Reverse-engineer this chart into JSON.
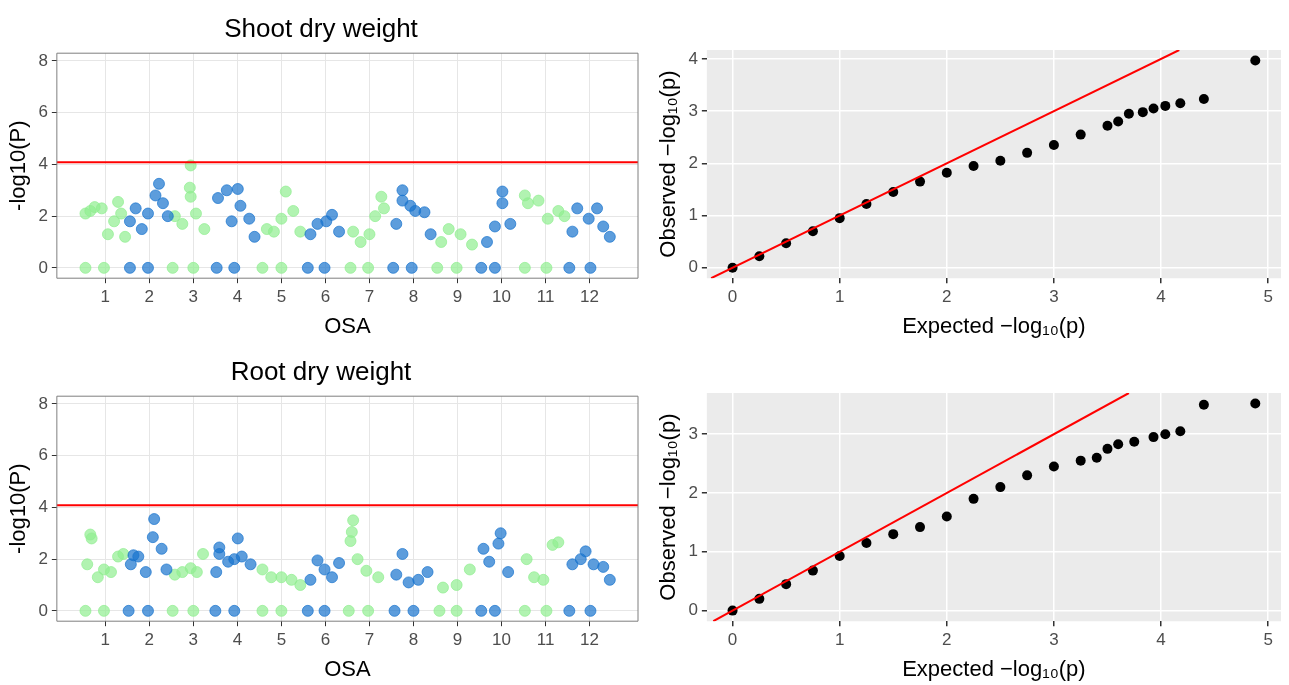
{
  "chart_data": [
    {
      "type": "scatter",
      "title": "Shoot dry weight",
      "xlabel": "OSA",
      "ylabel": "-log10(P)",
      "xlim": [
        -0.1,
        13.1
      ],
      "xticks": [
        1,
        2,
        3,
        4,
        5,
        6,
        7,
        8,
        9,
        10,
        11,
        12
      ],
      "ylim": [
        -0.4,
        8.3
      ],
      "yticks": [
        0,
        2,
        4,
        6,
        8
      ],
      "grid": true,
      "legend": false,
      "marker": "circle",
      "ref_lines": [
        {
          "axis": "y",
          "value": 4.08,
          "color": "#ff0000"
        }
      ],
      "series": [
        {
          "color": "#90ee90",
          "x": [
            0.55,
            0.55,
            0.66,
            0.76,
            0.92,
            1.06,
            1.2,
            1.29,
            1.36,
            1.45,
            0.97,
            2.53,
            2.58,
            2.75,
            2.92,
            2.94,
            2.94,
            3.06,
            3.25,
            3.0,
            4.57,
            4.67,
            4.83,
            5.0,
            5.1,
            5.27,
            5.43,
            5.0,
            6.57,
            6.63,
            6.8,
            7.0,
            7.13,
            7.27,
            7.33,
            6.97,
            8.54,
            8.63,
            8.8,
            9.07,
            9.33,
            8.98,
            10.53,
            10.53,
            10.6,
            10.84,
            11.05,
            11.29,
            11.43,
            11.02
          ],
          "values": [
            0,
            2.1,
            2.2,
            2.35,
            2.3,
            1.3,
            1.8,
            2.55,
            2.1,
            1.2,
            0,
            0,
            2.0,
            1.7,
            3.1,
            3.96,
            2.75,
            2.1,
            1.5,
            0,
            0,
            1.5,
            1.4,
            1.9,
            2.95,
            2.2,
            1.4,
            0,
            0,
            1.4,
            1.0,
            1.3,
            2.0,
            2.75,
            2.3,
            0,
            0,
            1.0,
            1.5,
            1.3,
            0.9,
            0,
            0,
            2.8,
            2.5,
            2.6,
            1.9,
            2.2,
            2.0,
            0
          ]
        },
        {
          "color": "#1874cd",
          "x": [
            1.56,
            1.56,
            1.69,
            1.83,
            1.97,
            2.14,
            2.22,
            2.31,
            2.42,
            1.97,
            3.53,
            3.56,
            3.76,
            3.87,
            4.01,
            4.07,
            4.27,
            4.39,
            3.93,
            5.6,
            5.66,
            5.82,
            6.02,
            6.15,
            6.31,
            5.98,
            7.54,
            7.61,
            7.75,
            7.75,
            7.93,
            8.04,
            8.25,
            8.39,
            7.96,
            9.54,
            9.67,
            9.85,
            10.02,
            10.02,
            10.2,
            9.85,
            11.54,
            11.61,
            11.72,
            11.98,
            12.17,
            12.31,
            12.46,
            12.02
          ],
          "values": [
            0,
            1.8,
            2.3,
            1.5,
            2.1,
            2.8,
            3.25,
            2.5,
            2.0,
            0,
            0,
            2.7,
            3.0,
            1.8,
            3.05,
            2.4,
            1.9,
            1.2,
            0,
            0,
            1.3,
            1.7,
            1.8,
            2.05,
            1.4,
            0,
            0,
            1.7,
            3.0,
            2.6,
            2.4,
            2.2,
            2.15,
            1.3,
            0,
            0,
            1.0,
            1.6,
            2.95,
            2.5,
            1.7,
            0,
            0,
            1.4,
            2.3,
            1.9,
            2.3,
            1.6,
            1.2,
            0
          ]
        }
      ]
    },
    {
      "type": "scatter",
      "xlabel": "Expected −log₁₀(p)",
      "ylabel": "Observed −log₁₀(p)",
      "xlim": [
        -0.24,
        5.12
      ],
      "xticks": [
        0,
        1,
        2,
        3,
        4,
        5
      ],
      "ylim": [
        -0.2,
        4.17
      ],
      "yticks": [
        0,
        1,
        2,
        3,
        4
      ],
      "grid": true,
      "legend": false,
      "marker": "circle",
      "series": [
        {
          "color": "#000000",
          "x": [
            0,
            0.25,
            0.5,
            0.75,
            1,
            1.25,
            1.5,
            1.75,
            2,
            2.25,
            2.5,
            2.75,
            3,
            3.25,
            3.5,
            3.6,
            3.7,
            3.83,
            3.93,
            4.04,
            4.18,
            4.4,
            4.88
          ],
          "values": [
            0,
            0.22,
            0.47,
            0.7,
            0.95,
            1.22,
            1.45,
            1.65,
            1.82,
            1.95,
            2.05,
            2.2,
            2.35,
            2.55,
            2.72,
            2.8,
            2.95,
            2.98,
            3.05,
            3.1,
            3.15,
            3.23,
            3.97
          ]
        },
        {
          "type": "line",
          "marker": "none",
          "color": "#ff0000",
          "x": [
            -0.2,
            4.17
          ],
          "values": [
            -0.2,
            4.17
          ]
        }
      ]
    },
    {
      "type": "scatter",
      "title": "Root dry weight",
      "xlabel": "OSA",
      "ylabel": "-log10(P)",
      "xlim": [
        -0.1,
        13.1
      ],
      "xticks": [
        1,
        2,
        3,
        4,
        5,
        6,
        7,
        8,
        9,
        10,
        11,
        12
      ],
      "ylim": [
        -0.4,
        8.3
      ],
      "yticks": [
        0,
        2,
        4,
        6,
        8
      ],
      "grid": true,
      "legend": false,
      "marker": "circle",
      "ref_lines": [
        {
          "axis": "y",
          "value": 4.08,
          "color": "#ff0000"
        }
      ],
      "series": [
        {
          "color": "#90ee90",
          "x": [
            0.55,
            0.59,
            0.66,
            0.69,
            0.83,
            0.97,
            1.13,
            1.29,
            1.41,
            0.97,
            2.53,
            2.58,
            2.75,
            2.94,
            3.08,
            3.22,
            3.0,
            4.57,
            4.57,
            4.77,
            5.0,
            5.23,
            5.43,
            5.0,
            6.53,
            6.57,
            6.6,
            6.63,
            6.73,
            6.93,
            7.2,
            6.97,
            8.59,
            8.67,
            8.98,
            9.28,
            8.98,
            10.53,
            10.57,
            10.74,
            10.95,
            11.16,
            11.29,
            11.02
          ],
          "values": [
            0,
            1.8,
            2.95,
            2.8,
            1.3,
            1.6,
            1.5,
            2.1,
            2.2,
            0,
            0,
            1.4,
            1.5,
            1.65,
            1.5,
            2.2,
            0,
            0,
            1.6,
            1.3,
            1.3,
            1.2,
            1.0,
            0,
            0,
            2.7,
            3.05,
            3.5,
            2.0,
            1.55,
            1.3,
            0,
            0,
            0.9,
            1.0,
            1.6,
            0,
            0,
            2.0,
            1.3,
            1.2,
            2.55,
            2.65,
            0
          ]
        },
        {
          "color": "#1874cd",
          "x": [
            1.53,
            1.58,
            1.64,
            1.75,
            1.92,
            2.08,
            2.11,
            2.28,
            2.39,
            1.97,
            3.5,
            3.52,
            3.59,
            3.59,
            3.79,
            3.93,
            4.01,
            4.1,
            4.3,
            3.93,
            5.6,
            5.66,
            5.82,
            5.98,
            6.15,
            6.31,
            5.98,
            7.57,
            7.61,
            7.75,
            7.89,
            8.11,
            8.32,
            8.0,
            9.54,
            9.59,
            9.72,
            9.93,
            9.98,
            10.15,
            9.85,
            11.54,
            11.61,
            11.8,
            11.91,
            12.09,
            12.31,
            12.46,
            12.02
          ],
          "values": [
            0,
            1.8,
            2.15,
            2.1,
            1.5,
            2.85,
            3.55,
            2.4,
            1.6,
            0,
            0,
            1.5,
            2.45,
            2.2,
            1.9,
            2.0,
            2.8,
            2.1,
            1.8,
            0,
            0,
            1.2,
            1.95,
            1.6,
            1.3,
            1.85,
            0,
            0,
            1.4,
            2.2,
            1.1,
            1.2,
            1.5,
            0,
            0,
            2.4,
            1.9,
            2.6,
            3.0,
            1.5,
            0,
            0,
            1.8,
            2.0,
            2.3,
            1.8,
            1.7,
            1.2,
            0
          ]
        }
      ]
    },
    {
      "type": "scatter",
      "xlabel": "Expected −log₁₀(p)",
      "ylabel": "Observed −log₁₀(p)",
      "xlim": [
        -0.24,
        5.12
      ],
      "xticks": [
        0,
        1,
        2,
        3,
        4,
        5
      ],
      "ylim": [
        -0.18,
        3.7
      ],
      "yticks": [
        0,
        1,
        2,
        3
      ],
      "grid": true,
      "legend": false,
      "marker": "circle",
      "series": [
        {
          "color": "#000000",
          "x": [
            0,
            0.25,
            0.5,
            0.75,
            1,
            1.25,
            1.5,
            1.75,
            2,
            2.25,
            2.5,
            2.75,
            3,
            3.25,
            3.4,
            3.5,
            3.6,
            3.75,
            3.93,
            4.04,
            4.18,
            4.4,
            4.88
          ],
          "values": [
            0,
            0.2,
            0.45,
            0.68,
            0.93,
            1.15,
            1.3,
            1.42,
            1.6,
            1.9,
            2.1,
            2.3,
            2.45,
            2.55,
            2.6,
            2.75,
            2.83,
            2.87,
            2.95,
            3.0,
            3.05,
            3.5,
            3.52
          ]
        },
        {
          "type": "line",
          "marker": "none",
          "color": "#ff0000",
          "x": [
            -0.18,
            3.7
          ],
          "values": [
            -0.18,
            3.7
          ]
        }
      ]
    }
  ]
}
